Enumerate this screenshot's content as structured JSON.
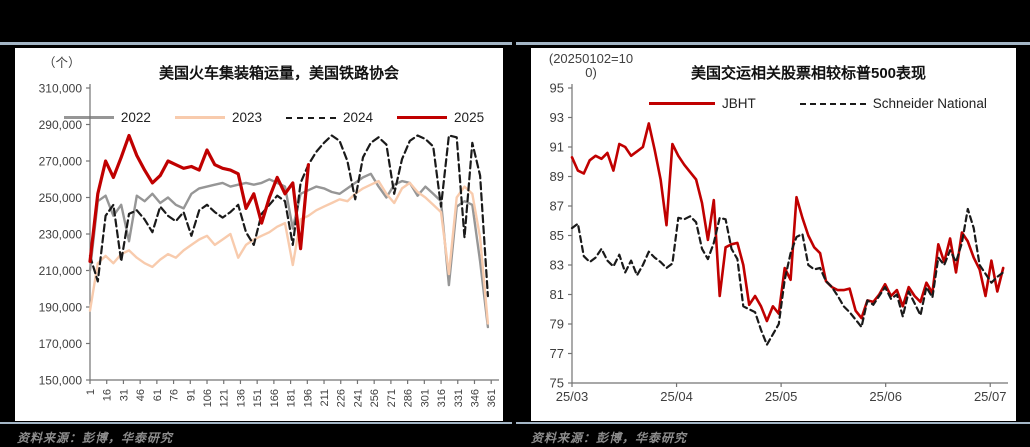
{
  "page": {
    "background_color": "#000000",
    "rule_color": "#a4b6c6"
  },
  "chart_data": [
    {
      "type": "line",
      "title": "美国火车集装箱运量，美国铁路协会",
      "unit_label": "（个）",
      "source": "资料来源：彭博，华泰研究",
      "legend_position": "top-center",
      "grid": false,
      "ylim": [
        150000,
        310000
      ],
      "yticks": [
        310000,
        290000,
        270000,
        250000,
        230000,
        210000,
        190000,
        170000,
        150000
      ],
      "ytick_format": "thousands",
      "xlim": [
        1,
        368
      ],
      "xticks": [
        1,
        16,
        31,
        46,
        61,
        76,
        91,
        106,
        121,
        136,
        151,
        166,
        181,
        196,
        211,
        226,
        241,
        256,
        271,
        286,
        301,
        316,
        331,
        346,
        361
      ],
      "xtick_rotation": -90,
      "series": [
        {
          "name": "2022",
          "color": "#969696",
          "dash": null,
          "width": 2.4,
          "x_start": 1,
          "x_step": 7,
          "values": [
            210000,
            248000,
            251000,
            240000,
            246000,
            226000,
            251000,
            248000,
            252000,
            247000,
            250000,
            246000,
            244000,
            252000,
            255000,
            256000,
            257000,
            258000,
            256000,
            257000,
            258000,
            257000,
            258000,
            260000,
            258000,
            256000,
            233000,
            252000,
            254000,
            256000,
            255000,
            253000,
            252000,
            255000,
            258000,
            261000,
            263000,
            256000,
            250000,
            257000,
            259000,
            258000,
            251000,
            256000,
            252000,
            248000,
            202000,
            245000,
            248000,
            246000,
            215000,
            179000
          ]
        },
        {
          "name": "2023",
          "color": "#f8cbad",
          "dash": null,
          "width": 2.4,
          "x_start": 1,
          "x_step": 7,
          "values": [
            188000,
            214000,
            218000,
            214000,
            219000,
            221000,
            217000,
            214000,
            212000,
            216000,
            219000,
            217000,
            221000,
            224000,
            227000,
            229000,
            224000,
            227000,
            230000,
            217000,
            224000,
            227000,
            229000,
            231000,
            234000,
            236000,
            213000,
            238000,
            240000,
            243000,
            245000,
            247000,
            249000,
            248000,
            252000,
            255000,
            257000,
            259000,
            252000,
            247000,
            255000,
            258000,
            253000,
            250000,
            246000,
            242000,
            208000,
            250000,
            256000,
            252000,
            228000,
            181000
          ]
        },
        {
          "name": "2024",
          "color": "#1a1a1a",
          "dash": "7 4",
          "width": 2.2,
          "x_start": 1,
          "x_step": 7,
          "values": [
            218000,
            204000,
            240000,
            246000,
            215000,
            241000,
            243000,
            238000,
            231000,
            245000,
            240000,
            237000,
            242000,
            229000,
            243000,
            246000,
            242000,
            239000,
            242000,
            246000,
            231000,
            224000,
            241000,
            246000,
            251000,
            248000,
            224000,
            258000,
            268000,
            275000,
            280000,
            284000,
            281000,
            270000,
            249000,
            272000,
            280000,
            283000,
            279000,
            252000,
            271000,
            281000,
            284000,
            282000,
            278000,
            245000,
            284000,
            283000,
            228000,
            280000,
            262000,
            196000
          ]
        },
        {
          "name": "2025",
          "color": "#c00000",
          "dash": null,
          "width": 3.2,
          "x_start": 1,
          "x_step": 7,
          "values": [
            215000,
            252000,
            270000,
            261000,
            272000,
            284000,
            273000,
            265000,
            258000,
            262000,
            270000,
            268000,
            266000,
            267000,
            265000,
            276000,
            268000,
            266000,
            265000,
            263000,
            244000,
            252000,
            236000,
            250000,
            261000,
            252000,
            258000,
            222000,
            268000
          ]
        }
      ]
    },
    {
      "type": "line",
      "title": "美国交运相关股票相较标普500表现",
      "unit_label": "(20250102=100)",
      "source": "资料来源：彭博，华泰研究",
      "legend_position": "top-center",
      "grid": false,
      "ylim": [
        75,
        95
      ],
      "yticks": [
        95,
        93,
        91,
        89,
        87,
        85,
        83,
        81,
        79,
        77,
        75
      ],
      "ytick_format": "plain",
      "xlim": [
        0,
        4.17
      ],
      "xticks": [
        0,
        1,
        2,
        3,
        4
      ],
      "xtick_labels": [
        "25/03",
        "25/04",
        "25/05",
        "25/06",
        "25/07"
      ],
      "xtick_rotation": 0,
      "series": [
        {
          "name": "JBHT",
          "color": "#c00000",
          "dash": null,
          "width": 2.6,
          "x_start": 0,
          "x_step": 0.0565,
          "values": [
            90.3,
            89.4,
            89.2,
            90.1,
            90.4,
            90.2,
            90.6,
            89.4,
            91.2,
            91.0,
            90.4,
            90.7,
            91.0,
            92.6,
            90.8,
            88.8,
            85.7,
            91.2,
            90.4,
            89.8,
            89.3,
            88.8,
            87.2,
            84.7,
            87.4,
            80.9,
            84.2,
            84.4,
            84.5,
            83.0,
            80.3,
            80.9,
            80.2,
            79.2,
            80.2,
            79.7,
            82.8,
            82.0,
            87.6,
            86.2,
            85.0,
            84.2,
            83.8,
            81.9,
            81.5,
            81.3,
            81.3,
            81.4,
            79.9,
            79.4,
            80.6,
            80.5,
            81.0,
            81.7,
            80.9,
            81.3,
            80.2,
            81.5,
            80.9,
            80.5,
            81.8,
            81.1,
            84.4,
            83.2,
            84.8,
            82.5,
            85.2,
            84.6,
            83.5,
            82.7,
            80.9,
            83.3,
            81.2,
            82.8
          ]
        },
        {
          "name": "Schneider National",
          "color": "#1a1a1a",
          "dash": "6 4",
          "width": 2.2,
          "x_start": 0,
          "x_step": 0.0565,
          "values": [
            85.5,
            85.8,
            83.6,
            83.2,
            83.5,
            84.1,
            83.3,
            82.9,
            83.7,
            82.5,
            83.3,
            82.3,
            83.0,
            83.9,
            83.5,
            83.2,
            82.8,
            83.1,
            86.2,
            86.1,
            86.3,
            85.9,
            84.1,
            83.4,
            84.5,
            86.2,
            86.1,
            84.1,
            83.4,
            80.2,
            80.0,
            79.8,
            78.6,
            77.6,
            78.3,
            79.0,
            82.0,
            83.8,
            84.9,
            85.1,
            83.0,
            82.7,
            82.8,
            81.9,
            81.5,
            80.9,
            80.2,
            79.8,
            79.3,
            78.8,
            80.6,
            80.3,
            80.9,
            81.5,
            80.7,
            81.0,
            79.5,
            81.2,
            80.4,
            79.6,
            81.5,
            80.8,
            83.5,
            83.0,
            84.0,
            83.2,
            84.5,
            86.8,
            85.5,
            83.0,
            82.4,
            81.8,
            82.2,
            82.5
          ]
        }
      ]
    }
  ]
}
